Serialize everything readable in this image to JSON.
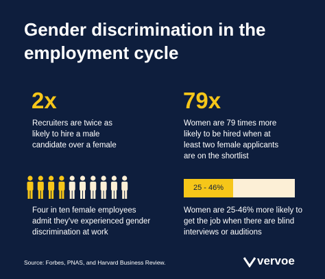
{
  "title": [
    "Gender discrimination in the",
    "employment cycle"
  ],
  "stats": [
    {
      "figure": "2x",
      "text": [
        "Recruiters are twice as",
        "likely to hire a male",
        "candidate over a female"
      ]
    },
    {
      "figure": "79x",
      "text": [
        "Women are 79 times more",
        "likely to be hired when at",
        "least two female applicants",
        "are on the shortlist"
      ]
    },
    {
      "text": [
        "Four in ten female employees",
        "admit they've experienced gender",
        "discrimination at work"
      ]
    },
    {
      "bar_label": "25 - 46%",
      "text": [
        "Women are 25-46% more likely to",
        "get the job when there are blind",
        "interviews or auditions"
      ]
    }
  ],
  "source": "Source: Forbes, PNAS, and Harvard Business Review.",
  "logo": "vervoe"
}
